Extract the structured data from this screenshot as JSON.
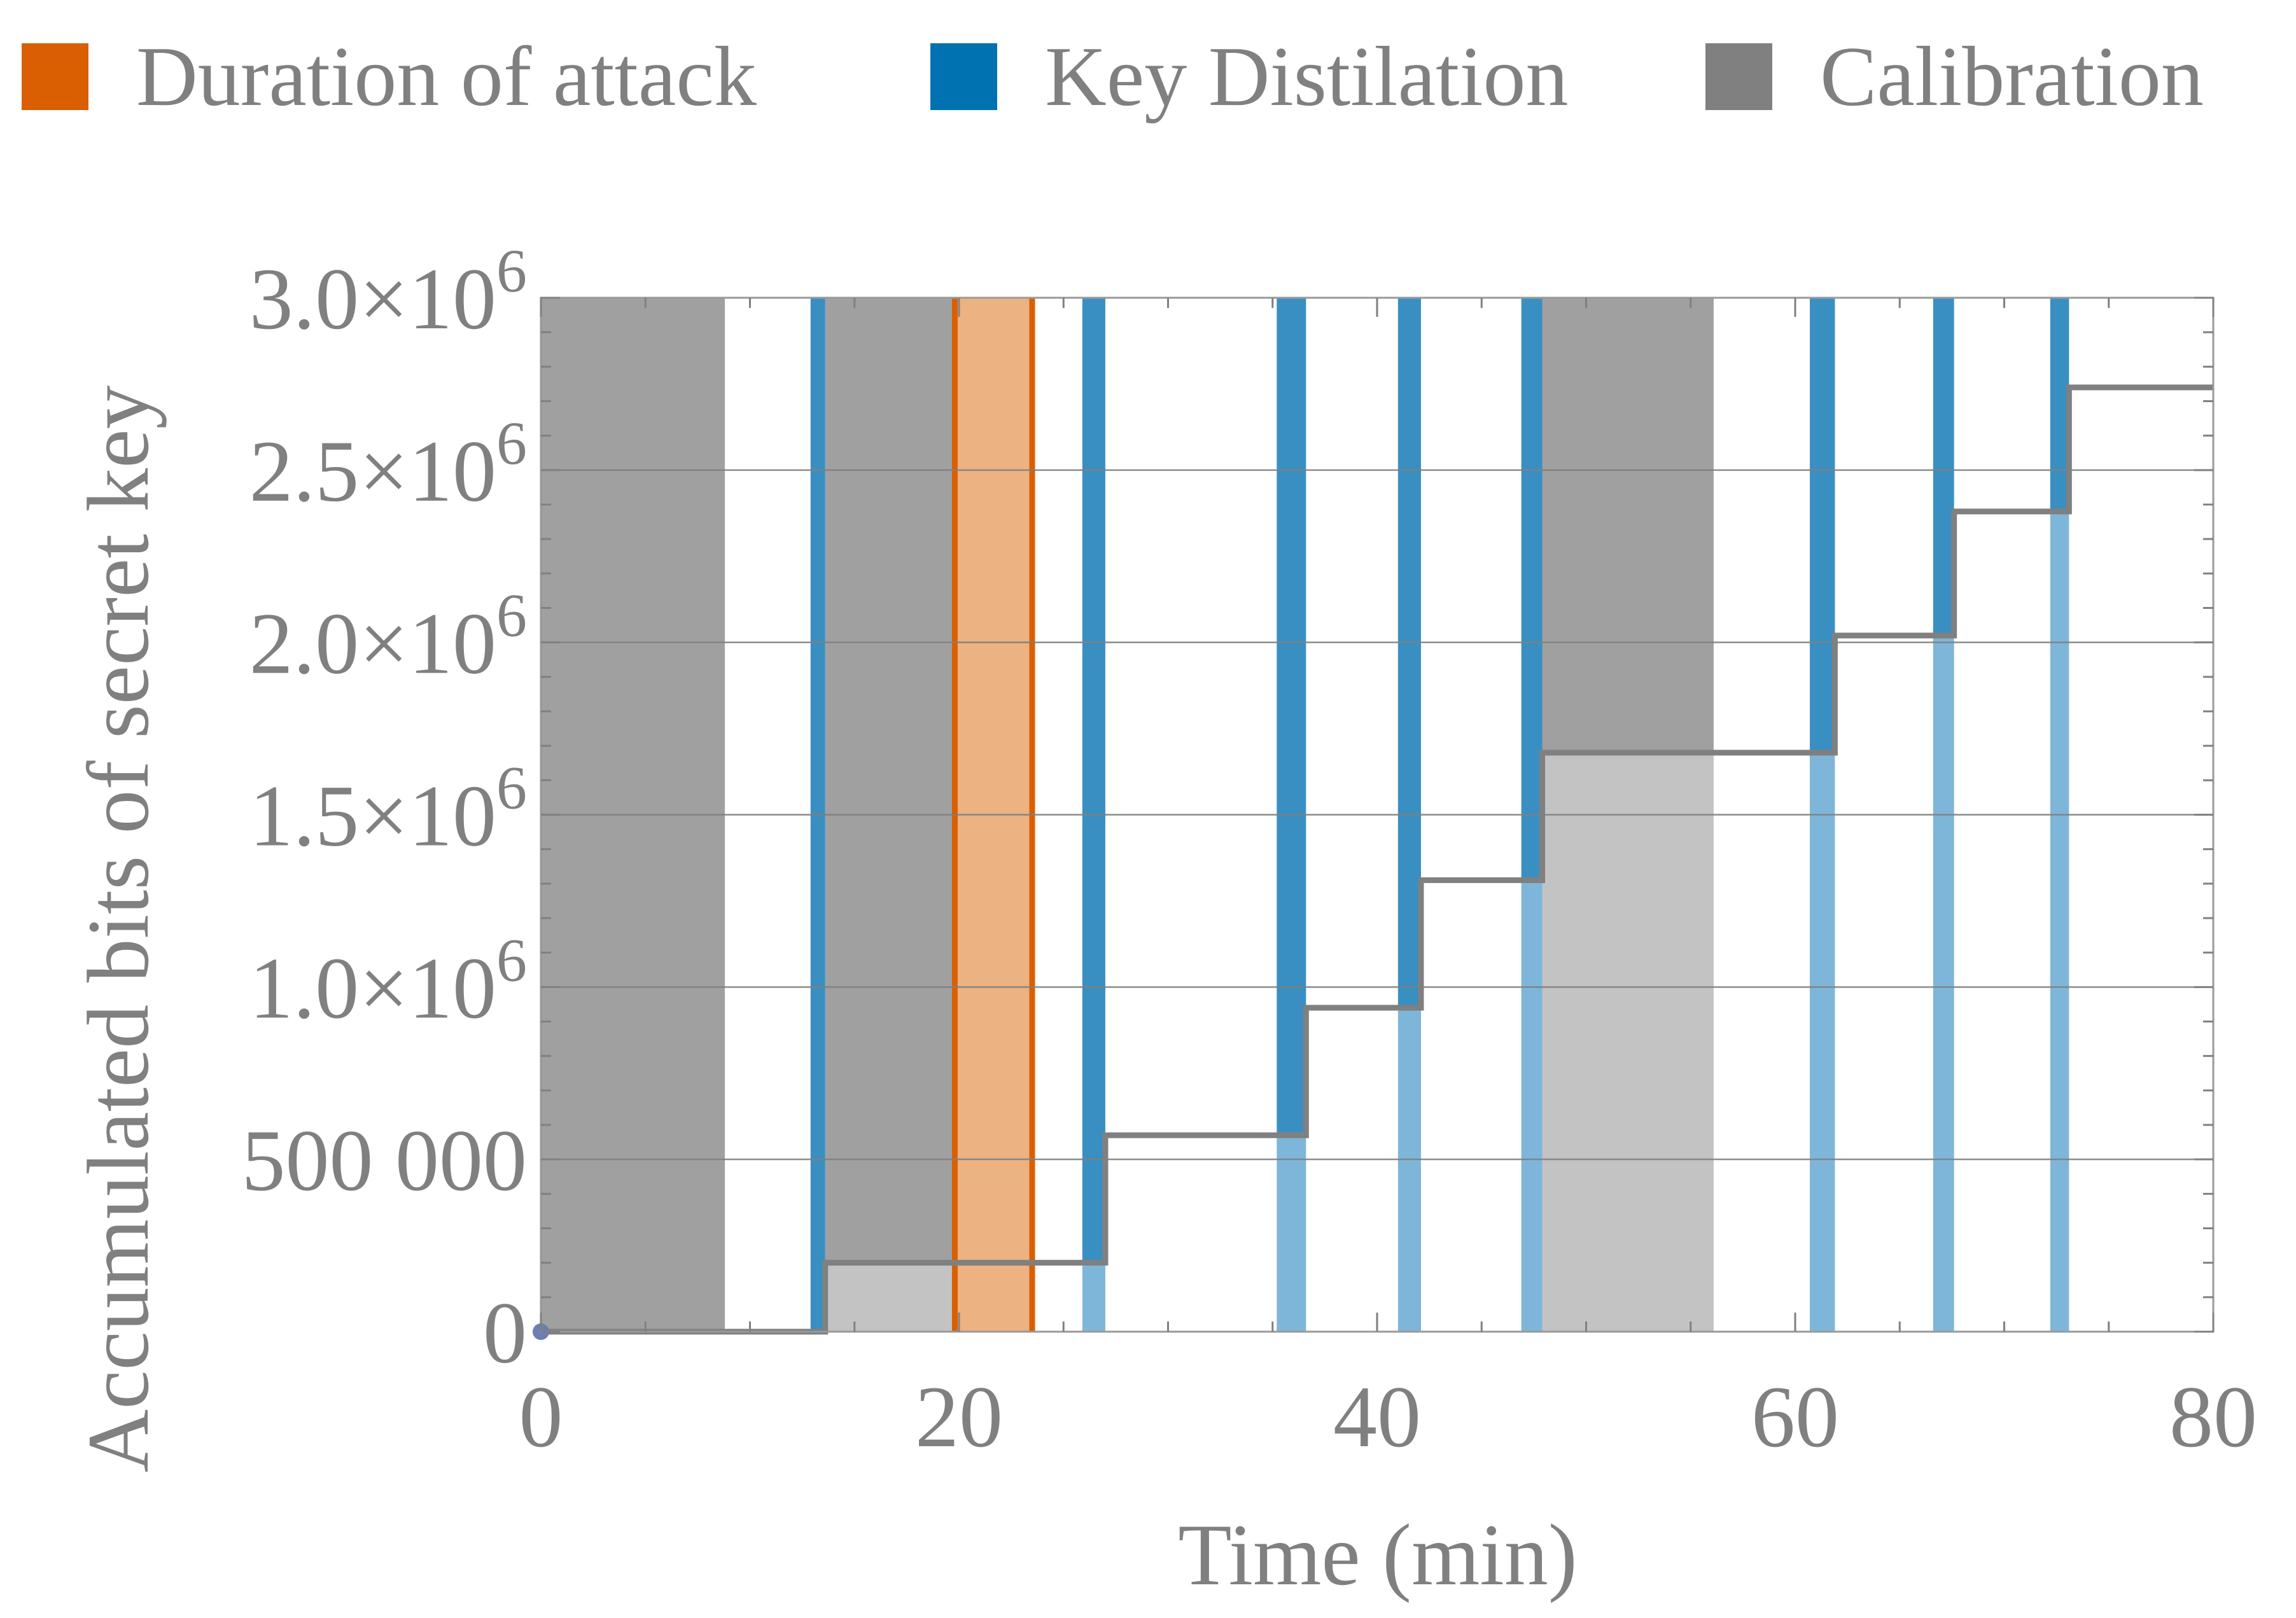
{
  "legend": {
    "items": [
      {
        "label": "Duration of attack",
        "color": "#d95f02"
      },
      {
        "label": "Key Distilation",
        "color": "#0072b2"
      },
      {
        "label": "Calibration",
        "color": "#808080"
      }
    ]
  },
  "chart_data": {
    "type": "step",
    "xlabel": "Time (min)",
    "ylabel": "Accumulated bits of secret key",
    "xlim": [
      0,
      80
    ],
    "ylim": [
      0,
      3000000
    ],
    "x_ticks": [
      {
        "value": 0,
        "label": "0"
      },
      {
        "value": 20,
        "label": "20"
      },
      {
        "value": 40,
        "label": "40"
      },
      {
        "value": 60,
        "label": "60"
      },
      {
        "value": 80,
        "label": "80"
      }
    ],
    "y_ticks": [
      {
        "value": 0,
        "mantissa": "0",
        "exp": ""
      },
      {
        "value": 500000,
        "mantissa": "500 000",
        "exp": ""
      },
      {
        "value": 1000000,
        "mantissa": "1.0×10",
        "exp": "6"
      },
      {
        "value": 1500000,
        "mantissa": "1.5×10",
        "exp": "6"
      },
      {
        "value": 2000000,
        "mantissa": "2.0×10",
        "exp": "6"
      },
      {
        "value": 2500000,
        "mantissa": "2.5×10",
        "exp": "6"
      },
      {
        "value": 3000000,
        "mantissa": "3.0×10",
        "exp": "6"
      }
    ],
    "grid": "horizontal",
    "legend_position": "top",
    "colors": {
      "attack_fill": "#e9a56c",
      "attack_edge": "#d95f02",
      "distillation_dark": "#3a8fc2",
      "distillation_light": "#7eb6d9",
      "calibration_dark": "#a0a0a0",
      "calibration_light": "#c3c3c3",
      "step_line": "#808080"
    },
    "calibration_periods": [
      {
        "start": 0,
        "end": 8.8
      },
      {
        "start": 13.6,
        "end": 19.8
      },
      {
        "start": 47.9,
        "end": 56.1
      }
    ],
    "attack_period": {
      "start": 19.8,
      "end": 23.5
    },
    "distillation_periods": [
      {
        "start": 12.9,
        "end": 13.6
      },
      {
        "start": 25.9,
        "end": 27.0
      },
      {
        "start": 35.2,
        "end": 36.6
      },
      {
        "start": 41.0,
        "end": 42.1
      },
      {
        "start": 46.9,
        "end": 47.9
      },
      {
        "start": 60.7,
        "end": 61.9
      },
      {
        "start": 66.6,
        "end": 67.6
      },
      {
        "start": 72.2,
        "end": 73.1
      }
    ],
    "step_series": {
      "name": "",
      "points": [
        {
          "x": 0,
          "y": 0
        },
        {
          "x": 13.6,
          "y": 200000
        },
        {
          "x": 27.0,
          "y": 570000
        },
        {
          "x": 36.6,
          "y": 940000
        },
        {
          "x": 42.1,
          "y": 1310000
        },
        {
          "x": 47.9,
          "y": 1680000
        },
        {
          "x": 61.9,
          "y": 2020000
        },
        {
          "x": 67.6,
          "y": 2380000
        },
        {
          "x": 73.1,
          "y": 2740000
        },
        {
          "x": 80,
          "y": 2740000
        }
      ]
    }
  }
}
